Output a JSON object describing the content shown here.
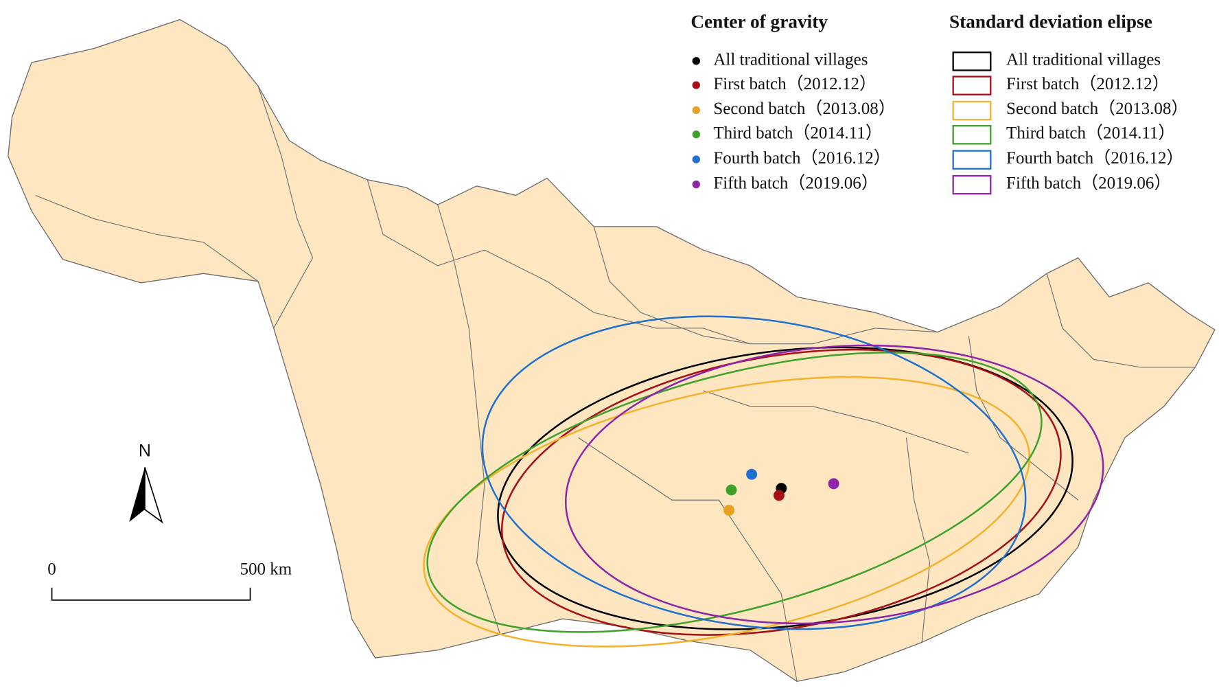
{
  "legend": {
    "center_of_gravity": {
      "title": "Center of gravity",
      "items": [
        {
          "label": "All traditional villages",
          "color": "#000000"
        },
        {
          "label": "First batch（2012.12）",
          "color": "#a50f15"
        },
        {
          "label": "Second batch（2013.08）",
          "color": "#e8a020"
        },
        {
          "label": "Third batch（2014.11）",
          "color": "#3fa02a"
        },
        {
          "label": "Fourth batch（2016.12）",
          "color": "#1f6fd0"
        },
        {
          "label": "Fifth batch（2019.06）",
          "color": "#8e24aa"
        }
      ]
    },
    "ellipse": {
      "title": "Standard deviation elipse",
      "items": [
        {
          "label": "All traditional villages",
          "color": "#000000"
        },
        {
          "label": "First batch（2012.12）",
          "color": "#a50f15"
        },
        {
          "label": "Second batch（2013.08）",
          "color": "#f4b12e"
        },
        {
          "label": "Third batch（2014.11）",
          "color": "#3fa02a"
        },
        {
          "label": "Fourth batch（2016.12）",
          "color": "#1f6fd0"
        },
        {
          "label": "Fifth batch（2019.06）",
          "color": "#8e24aa"
        }
      ]
    }
  },
  "north_arrow": {
    "label": "N"
  },
  "scale_bar": {
    "start": "0",
    "end": "500 km"
  }
}
